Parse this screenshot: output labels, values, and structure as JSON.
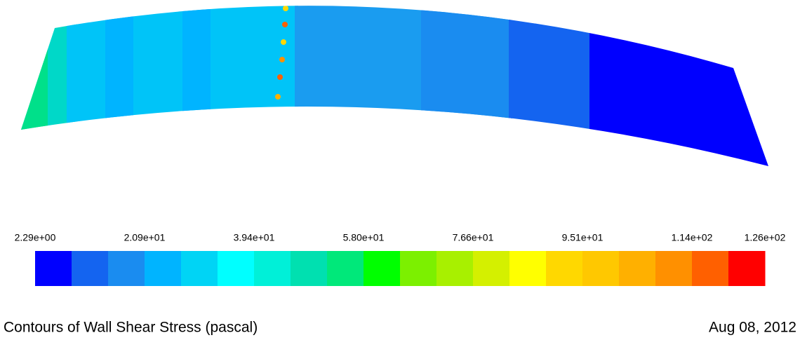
{
  "colorbar": {
    "labels": [
      "2.29e+00",
      "2.09e+01",
      "3.94e+01",
      "5.80e+01",
      "7.66e+01",
      "9.51e+01",
      "1.14e+02",
      "1.26e+02"
    ],
    "colors": [
      "#0000ff",
      "#1464f0",
      "#1a8cf0",
      "#00b4ff",
      "#00d4f5",
      "#00ffff",
      "#00f0d8",
      "#00e0b0",
      "#00e87a",
      "#00ff00",
      "#7cf000",
      "#a8f000",
      "#d4f000",
      "#ffff00",
      "#ffd800",
      "#ffc800",
      "#ffb000",
      "#ff9000",
      "#ff6000",
      "#ff0000"
    ]
  },
  "caption": "Contours of Wall Shear Stress (pascal)",
  "date": "Aug 08, 2012"
}
